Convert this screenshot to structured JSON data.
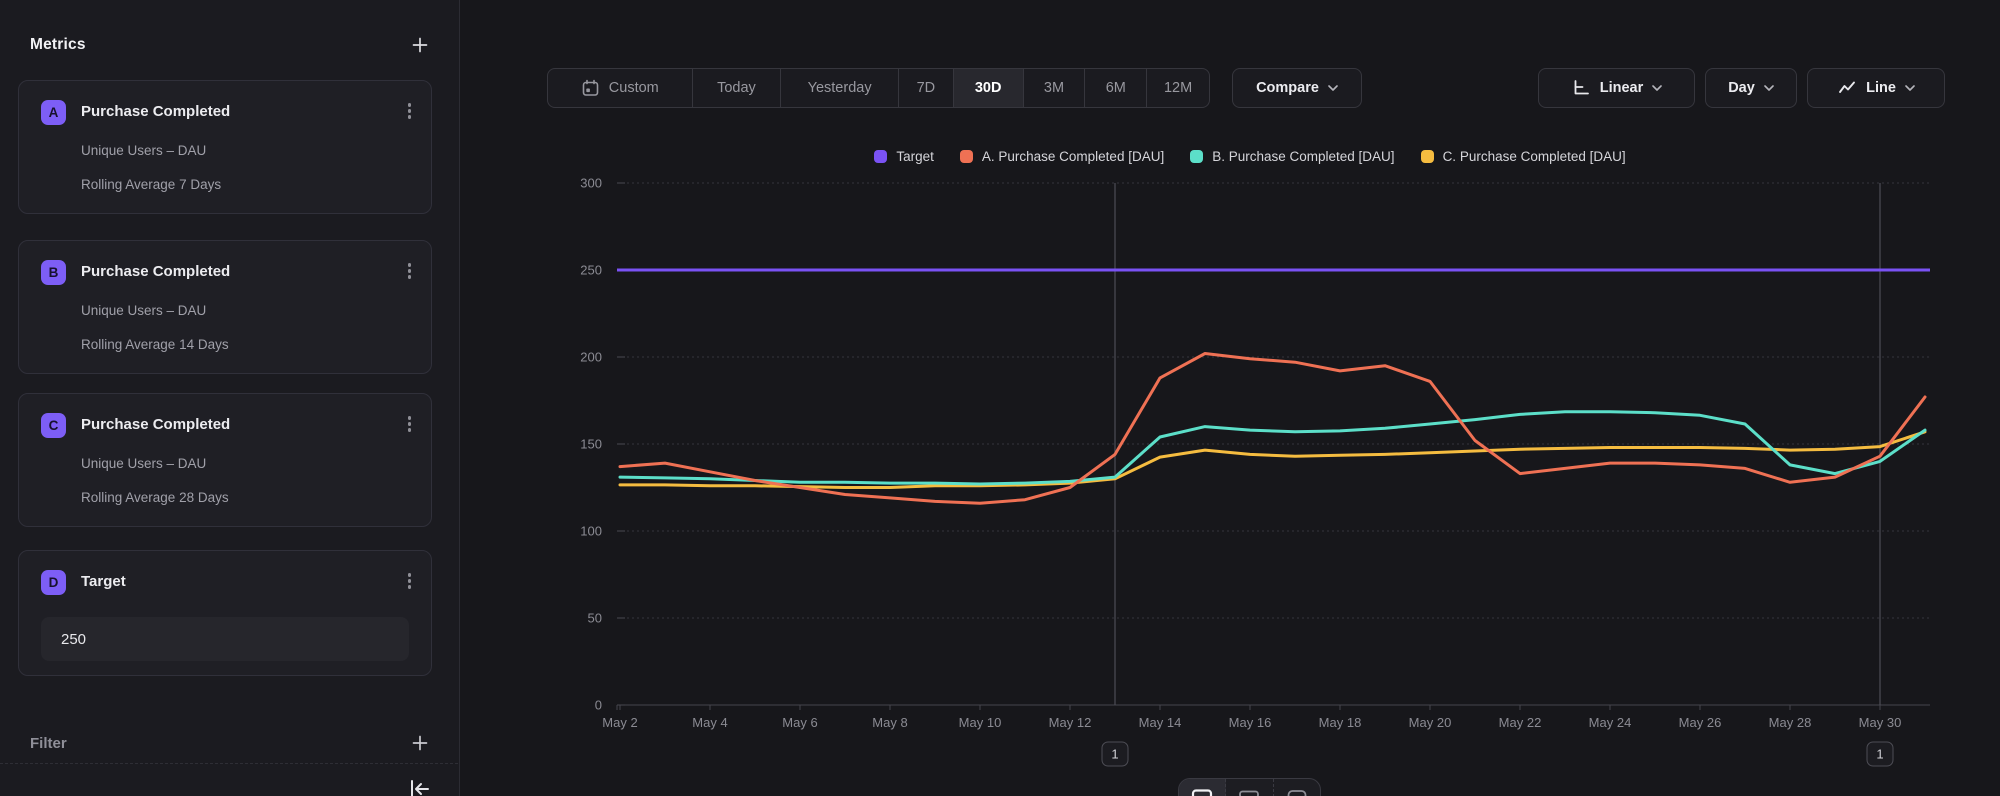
{
  "sidebar": {
    "metrics_header": "Metrics",
    "badge_color": "#7d5ef6",
    "metrics": [
      {
        "badge": "A",
        "title": "Purchase Completed",
        "measure": "Unique Users – DAU",
        "transform": "Rolling Average 7 Days"
      },
      {
        "badge": "B",
        "title": "Purchase Completed",
        "measure": "Unique Users – DAU",
        "transform": "Rolling Average 14 Days"
      },
      {
        "badge": "C",
        "title": "Purchase Completed",
        "measure": "Unique Users – DAU",
        "transform": "Rolling Average 28 Days"
      }
    ],
    "target": {
      "badge": "D",
      "title": "Target",
      "value": "250"
    },
    "filter_header": "Filter"
  },
  "toolbar": {
    "ranges": [
      "Custom",
      "Today",
      "Yesterday",
      "7D",
      "30D",
      "3M",
      "6M",
      "12M"
    ],
    "active_range": "30D",
    "compare_label": "Compare",
    "scale_label": "Linear",
    "interval_label": "Day",
    "chart_type_label": "Line"
  },
  "chart_data": {
    "type": "line",
    "x": [
      "May 2",
      "May 3",
      "May 4",
      "May 5",
      "May 6",
      "May 7",
      "May 8",
      "May 9",
      "May 10",
      "May 11",
      "May 12",
      "May 13",
      "May 14",
      "May 15",
      "May 16",
      "May 17",
      "May 18",
      "May 19",
      "May 20",
      "May 21",
      "May 22",
      "May 23",
      "May 24",
      "May 25",
      "May 26",
      "May 27",
      "May 28",
      "May 29",
      "May 30",
      "May 31"
    ],
    "x_tick_every": 2,
    "ylim": [
      0,
      300
    ],
    "yticks": [
      0,
      50,
      100,
      150,
      200,
      250,
      300
    ],
    "grid": true,
    "legend_position": "top-center",
    "series": [
      {
        "name": "Target",
        "color": "#7a52f4",
        "constant": 250
      },
      {
        "name": "A. Purchase Completed [DAU]",
        "color": "#ef7154",
        "values": [
          137,
          139,
          134,
          129,
          125,
          121,
          119,
          117,
          116,
          118,
          125,
          144,
          188,
          202,
          199,
          197,
          192,
          195,
          186,
          152,
          133,
          136,
          139,
          139,
          138,
          136,
          128,
          131,
          143,
          177
        ]
      },
      {
        "name": "B. Purchase Completed [DAU]",
        "color": "#5cdfc9",
        "values": [
          131,
          130.5,
          130,
          129,
          128,
          128,
          127.5,
          127.5,
          127,
          127.5,
          128.5,
          131,
          154,
          160,
          158,
          157,
          157.5,
          159,
          161.5,
          164,
          167,
          168.5,
          168.5,
          168,
          166.5,
          161.5,
          138,
          133,
          140,
          158
        ]
      },
      {
        "name": "C. Purchase Completed [DAU]",
        "color": "#f5bc40",
        "values": [
          126.5,
          126.5,
          126,
          126,
          125.5,
          125,
          125,
          126,
          126,
          126.5,
          127.5,
          130,
          142.5,
          146.5,
          144,
          143,
          143.5,
          144,
          145,
          146,
          147,
          147.5,
          148,
          148,
          148,
          147.5,
          146.5,
          147,
          148.5,
          157
        ]
      }
    ],
    "annotations": [
      {
        "index": 11,
        "x_label": "May 13",
        "badge": "1"
      },
      {
        "index": 28,
        "x_label": "May 30",
        "badge": "1"
      }
    ]
  }
}
